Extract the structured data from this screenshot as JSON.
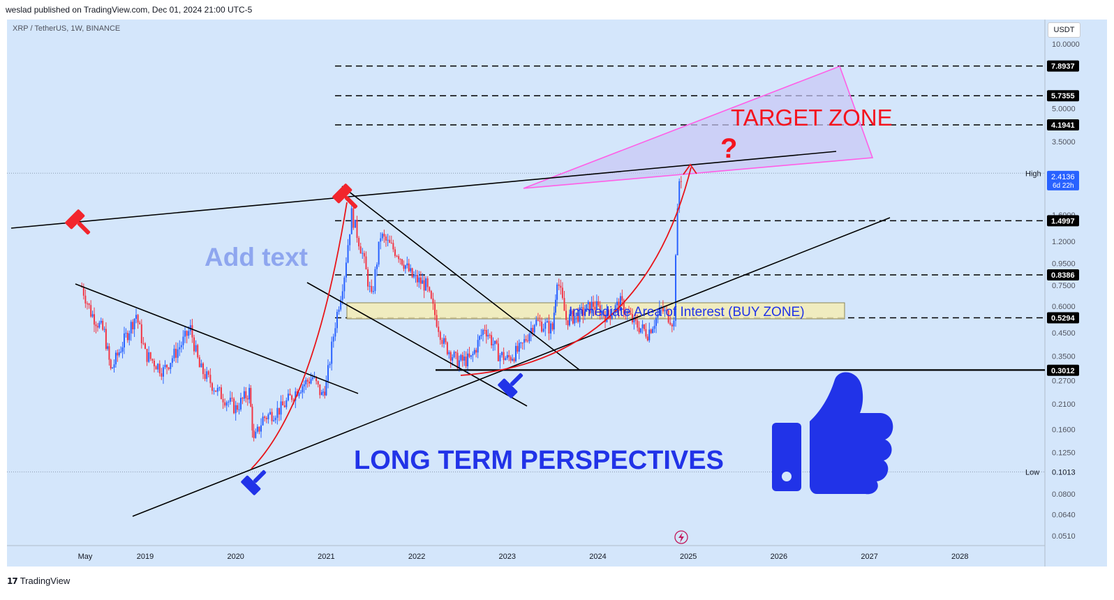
{
  "header": {
    "publisher": "weslad published on TradingView.com, Dec 01, 2024 21:00 UTC-5"
  },
  "symbol": "XRP / TetherUS, 1W, BINANCE",
  "currency_button": "USDT",
  "footer": {
    "logo_text": "TradingView",
    "logo_mark": "17"
  },
  "annotations": {
    "target_zone": "TARGET ZONE",
    "question_mark": "?",
    "add_text": "Add text",
    "buy_zone": "Immediate Area of Interest (BUY ZONE)",
    "long_term": "LONG TERM PERSPECTIVES"
  },
  "colors": {
    "background": "#d4e6fb",
    "up_candle": "#2962ff",
    "down_candle": "#f23645",
    "trendline": "#000000",
    "curve": "#e8151a",
    "target_zone_border": "#ff5ee6",
    "target_zone_fill": "#c9c6f5",
    "buy_zone_fill": "#f4ecb4",
    "annotation_red": "#f4141e",
    "annotation_blue": "#2133e8",
    "add_text": "#8ea6ef"
  },
  "chart_data": {
    "type": "candlestick",
    "scale": "log",
    "x_labels": [
      "May",
      "2019",
      "2020",
      "2021",
      "2022",
      "2023",
      "2024",
      "2025",
      "2026",
      "2027",
      "2028"
    ],
    "y_ticks": [
      "10.0000",
      "5.0000",
      "3.5000",
      "1.6000",
      "1.2000",
      "0.9500",
      "0.7500",
      "0.6000",
      "0.4500",
      "0.3500",
      "0.2700",
      "0.2100",
      "0.1600",
      "0.1250",
      "0.0800",
      "0.0640",
      "0.0510"
    ],
    "price_levels": [
      {
        "value": "7.8937",
        "style": "dashed"
      },
      {
        "value": "5.7355",
        "style": "dashed"
      },
      {
        "value": "4.1941",
        "style": "dashed"
      },
      {
        "value": "1.4997",
        "style": "dashed"
      },
      {
        "value": "0.8386",
        "style": "dashed"
      },
      {
        "value": "0.5294",
        "style": "dashed"
      },
      {
        "value": "0.3012",
        "style": "solid"
      }
    ],
    "high": {
      "label": "High",
      "value": "2.4977"
    },
    "low": {
      "label": "Low",
      "value": "0.1013"
    },
    "last_price": {
      "value": "2.4136",
      "countdown": "6d 22h"
    },
    "price_path": [
      [
        2018.3,
        0.74
      ],
      [
        2018.4,
        0.56
      ],
      [
        2018.55,
        0.45
      ],
      [
        2018.62,
        0.3
      ],
      [
        2018.75,
        0.4
      ],
      [
        2018.9,
        0.55
      ],
      [
        2019.0,
        0.36
      ],
      [
        2019.2,
        0.3
      ],
      [
        2019.4,
        0.4
      ],
      [
        2019.5,
        0.47
      ],
      [
        2019.6,
        0.31
      ],
      [
        2019.8,
        0.24
      ],
      [
        2020.0,
        0.2
      ],
      [
        2020.15,
        0.24
      ],
      [
        2020.2,
        0.14
      ],
      [
        2020.3,
        0.18
      ],
      [
        2020.5,
        0.2
      ],
      [
        2020.7,
        0.25
      ],
      [
        2020.85,
        0.28
      ],
      [
        2020.95,
        0.23
      ],
      [
        2021.0,
        0.26
      ],
      [
        2021.1,
        0.5
      ],
      [
        2021.2,
        0.85
      ],
      [
        2021.28,
        1.62
      ],
      [
        2021.4,
        1.05
      ],
      [
        2021.5,
        0.65
      ],
      [
        2021.6,
        1.28
      ],
      [
        2021.7,
        1.15
      ],
      [
        2021.8,
        1.05
      ],
      [
        2021.95,
        0.82
      ],
      [
        2022.1,
        0.75
      ],
      [
        2022.3,
        0.4
      ],
      [
        2022.45,
        0.33
      ],
      [
        2022.6,
        0.34
      ],
      [
        2022.75,
        0.48
      ],
      [
        2022.9,
        0.36
      ],
      [
        2023.0,
        0.34
      ],
      [
        2023.15,
        0.38
      ],
      [
        2023.3,
        0.51
      ],
      [
        2023.5,
        0.47
      ],
      [
        2023.55,
        0.82
      ],
      [
        2023.65,
        0.52
      ],
      [
        2023.8,
        0.55
      ],
      [
        2023.95,
        0.61
      ],
      [
        2024.1,
        0.54
      ],
      [
        2024.25,
        0.62
      ],
      [
        2024.4,
        0.5
      ],
      [
        2024.55,
        0.45
      ],
      [
        2024.7,
        0.58
      ],
      [
        2024.8,
        0.53
      ],
      [
        2024.84,
        0.5
      ],
      [
        2024.86,
        1.1
      ],
      [
        2024.88,
        1.6
      ],
      [
        2024.9,
        2.3
      ],
      [
        2024.92,
        2.41
      ]
    ],
    "xlabel": "",
    "ylabel": "",
    "ylim": [
      0.045,
      12.0
    ],
    "xlim": [
      2018.0,
      2029.0
    ]
  }
}
